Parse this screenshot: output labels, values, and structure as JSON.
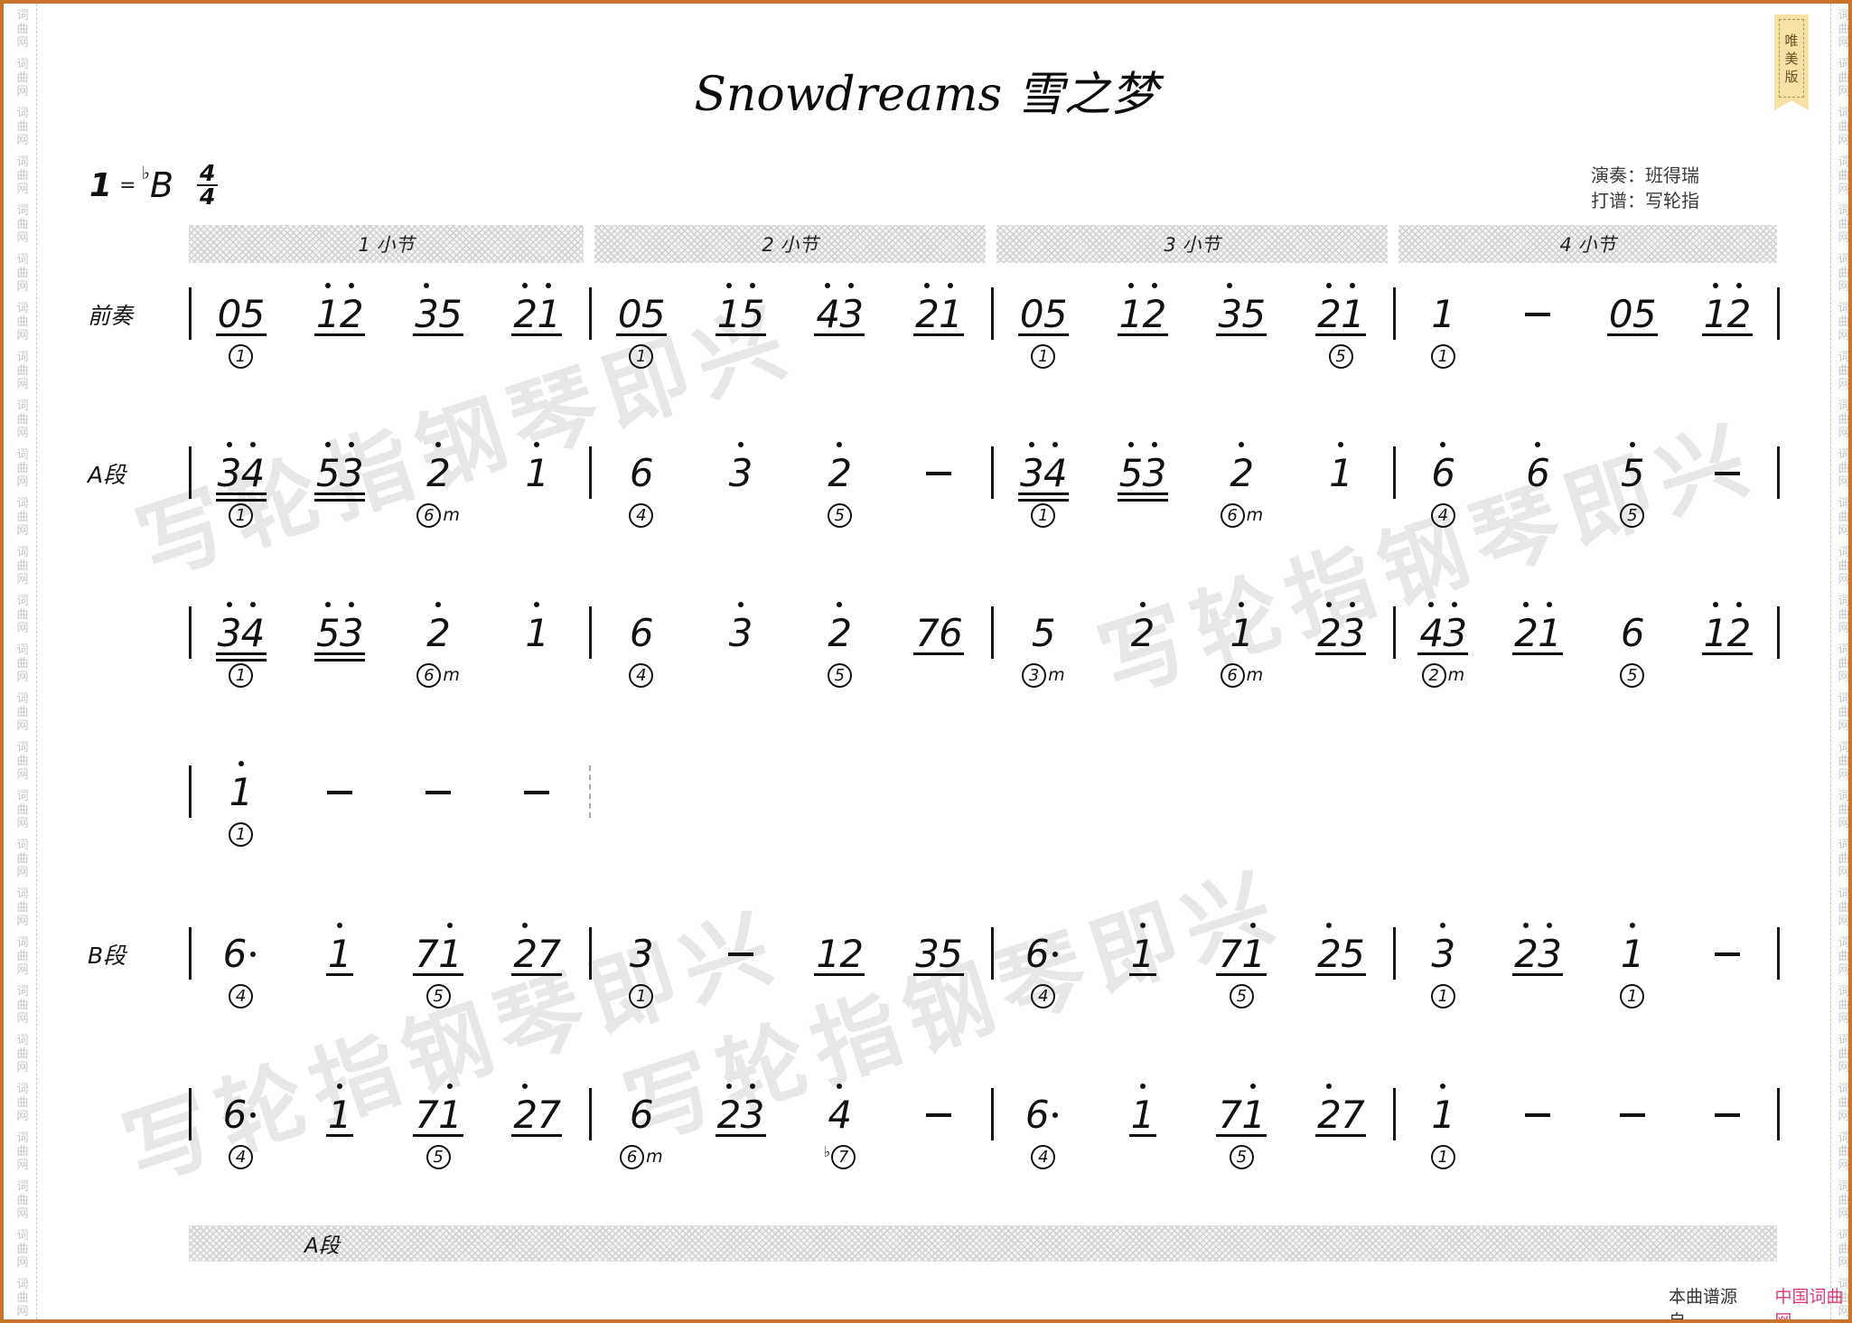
{
  "page": {
    "title": "Snowdreams 雪之梦",
    "badge": "唯美版",
    "key": {
      "degree": "1",
      "equals": "=",
      "flat": "♭",
      "letter": "B",
      "time_top": "4",
      "time_bottom": "4"
    },
    "credits": [
      "演奏：班得瑞",
      "打谱：写轮指"
    ],
    "measure_headers": [
      "1 小节",
      "2 小节",
      "3 小节",
      "4 小节"
    ],
    "footer_section": "A段",
    "source_prefix": "本曲谱源自",
    "source_site": "中国词曲网",
    "edge_watermark": "词曲网",
    "diag_watermark": "写轮指钢琴即兴",
    "colors": {
      "frame": "#c9732b",
      "badge_bg": "#f6e2a6",
      "badge_text": "#6d4d1e",
      "source_link": "#e03a7c"
    }
  },
  "systems": [
    {
      "label": "前奏",
      "end": "bar",
      "measures": [
        [
          {
            "d": "05",
            "u": 1,
            "ch": "1"
          },
          {
            "d": "12",
            "o": [
              1,
              1
            ],
            "u": 1
          },
          {
            "d": "35",
            "o": [
              1,
              0
            ],
            "u": 1
          },
          {
            "d": "21",
            "o": [
              1,
              1
            ],
            "u": 1
          }
        ],
        [
          {
            "d": "05",
            "u": 1,
            "ch": "1"
          },
          {
            "d": "15",
            "o": [
              1,
              1
            ],
            "u": 1
          },
          {
            "d": "43",
            "o": [
              1,
              1
            ],
            "u": 1
          },
          {
            "d": "21",
            "o": [
              1,
              1
            ],
            "u": 1
          }
        ],
        [
          {
            "d": "05",
            "u": 1,
            "ch": "1"
          },
          {
            "d": "12",
            "o": [
              1,
              1
            ],
            "u": 1
          },
          {
            "d": "35",
            "o": [
              1,
              0
            ],
            "u": 1
          },
          {
            "d": "21",
            "o": [
              1,
              1
            ],
            "u": 1,
            "ch": "5"
          }
        ],
        [
          {
            "d": "1",
            "ch": "1"
          },
          {
            "dash": 1
          },
          {
            "d": "05",
            "u": 1
          },
          {
            "d": "12",
            "o": [
              1,
              1
            ],
            "u": 1
          }
        ]
      ]
    },
    {
      "label": "A段",
      "end": "bar",
      "measures": [
        [
          {
            "d": "34",
            "o": [
              1,
              1
            ],
            "u": 2,
            "ch": "1"
          },
          {
            "d": "53",
            "o": [
              1,
              1
            ],
            "u": 2
          },
          {
            "d": "2",
            "o": [
              1
            ],
            "ch": "6m"
          },
          {
            "d": "1",
            "o": [
              1
            ]
          }
        ],
        [
          {
            "d": "6",
            "ch": "4"
          },
          {
            "d": "3",
            "o": [
              1
            ]
          },
          {
            "d": "2",
            "o": [
              1
            ],
            "ch": "5"
          },
          {
            "dash": 1
          }
        ],
        [
          {
            "d": "34",
            "o": [
              1,
              1
            ],
            "u": 2,
            "ch": "1"
          },
          {
            "d": "53",
            "o": [
              1,
              1
            ],
            "u": 2
          },
          {
            "d": "2",
            "o": [
              1
            ],
            "ch": "6m"
          },
          {
            "d": "1",
            "o": [
              1
            ]
          }
        ],
        [
          {
            "d": "6",
            "o": [
              1
            ],
            "ch": "4"
          },
          {
            "d": "6",
            "o": [
              1
            ]
          },
          {
            "d": "5",
            "o": [
              1
            ],
            "ch": "5"
          },
          {
            "dash": 1
          }
        ]
      ]
    },
    {
      "label": "",
      "end": "bar",
      "measures": [
        [
          {
            "d": "34",
            "o": [
              1,
              1
            ],
            "u": 2,
            "ch": "1"
          },
          {
            "d": "53",
            "o": [
              1,
              1
            ],
            "u": 2
          },
          {
            "d": "2",
            "o": [
              1
            ],
            "ch": "6m"
          },
          {
            "d": "1",
            "o": [
              1
            ]
          }
        ],
        [
          {
            "d": "6",
            "ch": "4"
          },
          {
            "d": "3",
            "o": [
              1
            ]
          },
          {
            "d": "2",
            "o": [
              1
            ],
            "ch": "5"
          },
          {
            "d": "76",
            "u": 1
          }
        ],
        [
          {
            "d": "5",
            "ch": "3m"
          },
          {
            "d": "2",
            "o": [
              1
            ]
          },
          {
            "d": "1",
            "o": [
              1
            ],
            "ch": "6m"
          },
          {
            "d": "23",
            "o": [
              1,
              1
            ],
            "u": 1
          }
        ],
        [
          {
            "d": "43",
            "o": [
              1,
              1
            ],
            "u": 1,
            "ch": "2m"
          },
          {
            "d": "21",
            "o": [
              1,
              1
            ],
            "u": 1
          },
          {
            "d": "6",
            "ch": "5"
          },
          {
            "d": "12",
            "o": [
              1,
              1
            ],
            "u": 1
          }
        ]
      ]
    },
    {
      "label": "",
      "end": "dashed",
      "measures": [
        [
          {
            "d": "1",
            "o": [
              1
            ],
            "ch": "1"
          },
          {
            "dash": 1
          },
          {
            "dash": 1
          },
          {
            "dash": 1
          }
        ]
      ]
    },
    {
      "label": "B段",
      "end": "bar",
      "measures": [
        [
          {
            "d": "6",
            "aug": 1,
            "ch": "4"
          },
          {
            "d": "1",
            "o": [
              1
            ],
            "u": 1
          },
          {
            "d": "71",
            "o": [
              0,
              1
            ],
            "u": 1,
            "ch": "5"
          },
          {
            "d": "27",
            "o": [
              1,
              0
            ],
            "u": 1
          }
        ],
        [
          {
            "d": "3",
            "ch": "1"
          },
          {
            "dash": 1
          },
          {
            "d": "12",
            "u": 1
          },
          {
            "d": "35",
            "u": 1
          }
        ],
        [
          {
            "d": "6",
            "aug": 1,
            "ch": "4"
          },
          {
            "d": "1",
            "o": [
              1
            ],
            "u": 1
          },
          {
            "d": "71",
            "o": [
              0,
              1
            ],
            "u": 1,
            "ch": "5"
          },
          {
            "d": "25",
            "o": [
              1,
              0
            ],
            "u": 1
          }
        ],
        [
          {
            "d": "3",
            "o": [
              1
            ],
            "ch": "1"
          },
          {
            "d": "23",
            "o": [
              1,
              1
            ],
            "u": 1
          },
          {
            "d": "1",
            "o": [
              1
            ],
            "ch": "1"
          },
          {
            "dash": 1
          }
        ]
      ]
    },
    {
      "label": "",
      "end": "bar",
      "measures": [
        [
          {
            "d": "6",
            "aug": 1,
            "ch": "4"
          },
          {
            "d": "1",
            "o": [
              1
            ],
            "u": 1
          },
          {
            "d": "71",
            "o": [
              0,
              1
            ],
            "u": 1,
            "ch": "5"
          },
          {
            "d": "27",
            "o": [
              1,
              0
            ],
            "u": 1
          }
        ],
        [
          {
            "d": "6",
            "ch": "6m"
          },
          {
            "d": "23",
            "o": [
              1,
              1
            ],
            "u": 1
          },
          {
            "d": "4",
            "o": [
              1
            ],
            "ch": "b7"
          },
          {
            "dash": 1
          }
        ],
        [
          {
            "d": "6",
            "aug": 1,
            "ch": "4"
          },
          {
            "d": "1",
            "o": [
              1
            ],
            "u": 1
          },
          {
            "d": "71",
            "o": [
              0,
              1
            ],
            "u": 1,
            "ch": "5"
          },
          {
            "d": "27",
            "o": [
              1,
              0
            ],
            "u": 1
          }
        ],
        [
          {
            "d": "1",
            "o": [
              1
            ],
            "ch": "1"
          },
          {
            "dash": 1
          },
          {
            "dash": 1
          },
          {
            "dash": 1
          }
        ]
      ]
    }
  ]
}
